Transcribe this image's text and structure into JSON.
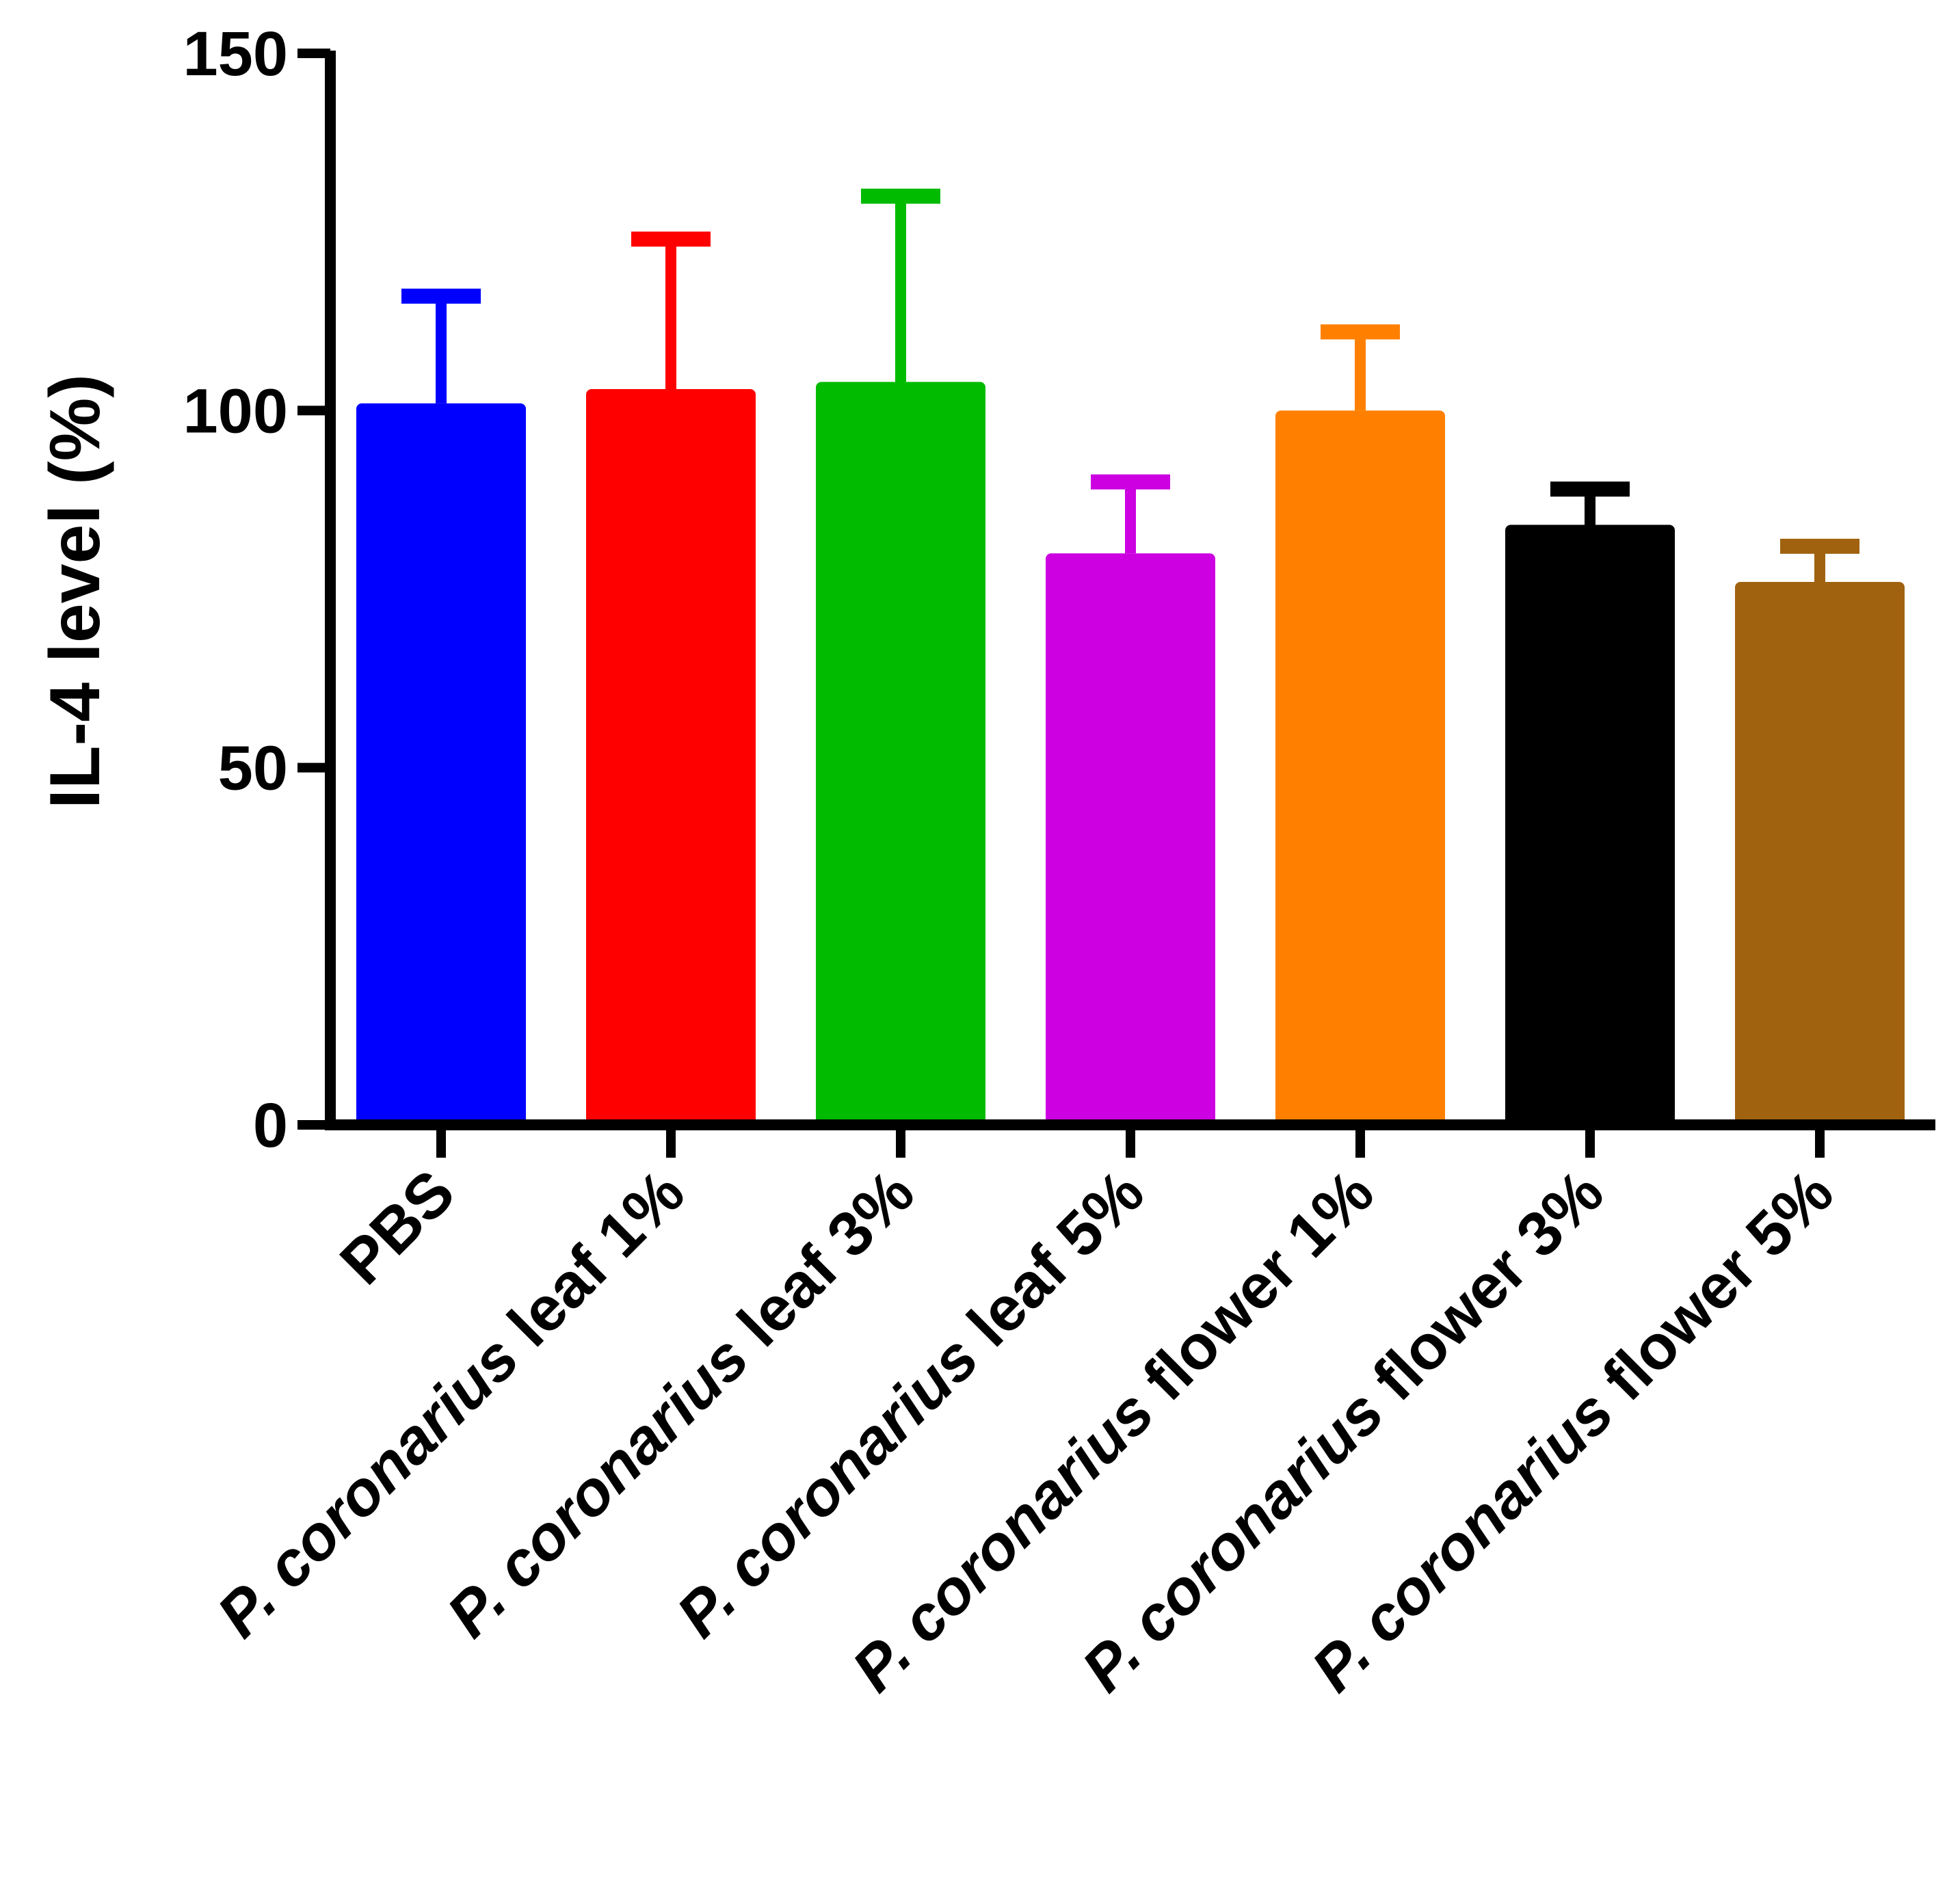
{
  "chart_data": {
    "type": "bar",
    "title": "",
    "xlabel": "",
    "ylabel": "IL-4 level (%)",
    "ylim": [
      0,
      150
    ],
    "yticks": [
      0,
      50,
      100,
      150
    ],
    "ytick_labels": [
      "0",
      "50",
      "100",
      "150"
    ],
    "grid": false,
    "categories": [
      {
        "prefix": "",
        "italic": "",
        "suffix": "PBS"
      },
      {
        "prefix": "",
        "italic": "P. coronarius",
        "suffix": " leaf 1%"
      },
      {
        "prefix": "",
        "italic": "P. coronarius",
        "suffix": " leaf 3%"
      },
      {
        "prefix": "",
        "italic": "P. coronarius",
        "suffix": " leaf 5%"
      },
      {
        "prefix": "",
        "italic": "P. coronarius",
        "suffix": " flower 1%"
      },
      {
        "prefix": "",
        "italic": "P. coronarius",
        "suffix": " flower 3%"
      },
      {
        "prefix": "",
        "italic": "P. coronarius",
        "suffix": " flower 5%"
      }
    ],
    "values": [
      101,
      103,
      104,
      80,
      100,
      84,
      76
    ],
    "errors": [
      15,
      21,
      26,
      10,
      11,
      5,
      5
    ],
    "colors": [
      "#0000ff",
      "#ff0000",
      "#00bb00",
      "#cc00e0",
      "#ff8000",
      "#000000",
      "#a0620f"
    ]
  }
}
